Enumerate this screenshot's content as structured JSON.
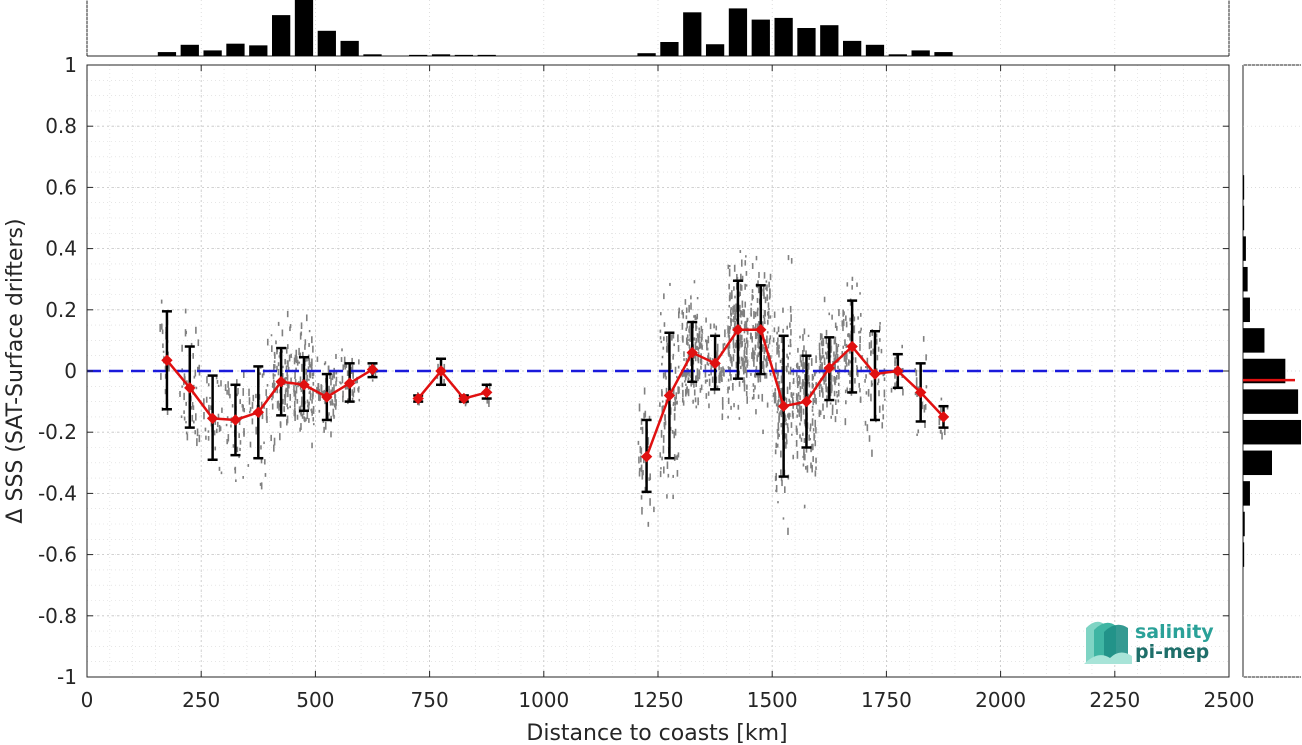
{
  "chart_data": {
    "type": "line",
    "title": "",
    "xlabel": "Distance to coasts [km]",
    "ylabel": "Δ SSS (SAT-Surface drifters)",
    "xlim": [
      0,
      2500
    ],
    "ylim": [
      -1,
      1
    ],
    "x_ticks": [
      0,
      250,
      500,
      750,
      1000,
      1250,
      1500,
      1750,
      2000,
      2250,
      2500
    ],
    "y_ticks": [
      1,
      0.8,
      0.6,
      0.4,
      0.2,
      0,
      -0.2,
      -0.4,
      -0.6,
      -0.8,
      -1
    ],
    "x_tick_labels": [
      "0",
      "250",
      "500",
      "750",
      "1000",
      "1250",
      "1500",
      "1750",
      "2000",
      "2250",
      "2500"
    ],
    "y_tick_labels": [
      "1",
      "0.8",
      "0.6",
      "0.4",
      "0.2",
      "0",
      "-0.2",
      "-0.4",
      "-0.6",
      "-0.8",
      "-1"
    ],
    "grid": true,
    "reference_line": {
      "y": 0,
      "color": "#1a1adb",
      "style": "dashed"
    },
    "mean_color": "#e01010",
    "errorbar_color": "#000000",
    "scatter_color": "#808080",
    "series": [
      {
        "segments": [
          [
            {
              "x": 175,
              "y": 0.035,
              "lo": -0.125,
              "hi": 0.195
            },
            {
              "x": 225,
              "y": -0.055,
              "lo": -0.185,
              "hi": 0.08
            },
            {
              "x": 275,
              "y": -0.155,
              "lo": -0.29,
              "hi": -0.015
            },
            {
              "x": 325,
              "y": -0.16,
              "lo": -0.275,
              "hi": -0.045
            },
            {
              "x": 375,
              "y": -0.135,
              "lo": -0.285,
              "hi": 0.015
            },
            {
              "x": 425,
              "y": -0.035,
              "lo": -0.145,
              "hi": 0.075
            },
            {
              "x": 475,
              "y": -0.045,
              "lo": -0.13,
              "hi": 0.045
            },
            {
              "x": 525,
              "y": -0.085,
              "lo": -0.16,
              "hi": -0.01
            },
            {
              "x": 575,
              "y": -0.04,
              "lo": -0.1,
              "hi": 0.025
            },
            {
              "x": 625,
              "y": 0.005,
              "lo": -0.02,
              "hi": 0.025
            }
          ],
          [
            {
              "x": 725,
              "y": -0.09,
              "lo": -0.1,
              "hi": -0.08
            },
            {
              "x": 775,
              "y": 0.0,
              "lo": -0.045,
              "hi": 0.04
            },
            {
              "x": 825,
              "y": -0.09,
              "lo": -0.1,
              "hi": -0.08
            },
            {
              "x": 875,
              "y": -0.07,
              "lo": -0.09,
              "hi": -0.045
            }
          ],
          [
            {
              "x": 1225,
              "y": -0.28,
              "lo": -0.395,
              "hi": -0.16
            },
            {
              "x": 1275,
              "y": -0.08,
              "lo": -0.285,
              "hi": 0.125
            },
            {
              "x": 1325,
              "y": 0.06,
              "lo": -0.035,
              "hi": 0.16
            },
            {
              "x": 1375,
              "y": 0.025,
              "lo": -0.06,
              "hi": 0.115
            },
            {
              "x": 1425,
              "y": 0.135,
              "lo": -0.025,
              "hi": 0.295
            },
            {
              "x": 1475,
              "y": 0.135,
              "lo": -0.01,
              "hi": 0.28
            },
            {
              "x": 1525,
              "y": -0.115,
              "lo": -0.345,
              "hi": 0.115
            },
            {
              "x": 1575,
              "y": -0.1,
              "lo": -0.25,
              "hi": 0.05
            },
            {
              "x": 1625,
              "y": 0.01,
              "lo": -0.095,
              "hi": 0.11
            },
            {
              "x": 1675,
              "y": 0.08,
              "lo": -0.07,
              "hi": 0.23
            },
            {
              "x": 1725,
              "y": -0.01,
              "lo": -0.16,
              "hi": 0.13
            },
            {
              "x": 1775,
              "y": 0.0,
              "lo": -0.055,
              "hi": 0.055
            },
            {
              "x": 1825,
              "y": -0.07,
              "lo": -0.165,
              "hi": 0.025
            },
            {
              "x": 1875,
              "y": -0.15,
              "lo": -0.185,
              "hi": -0.115
            }
          ]
        ]
      }
    ],
    "scatter_clusters": [
      {
        "x": 170,
        "spread": 10,
        "center": 0.03,
        "sd": 0.1,
        "n": 22
      },
      {
        "x": 225,
        "spread": 22,
        "center": -0.05,
        "sd": 0.1,
        "n": 45
      },
      {
        "x": 275,
        "spread": 22,
        "center": -0.15,
        "sd": 0.1,
        "n": 30
      },
      {
        "x": 325,
        "spread": 22,
        "center": -0.16,
        "sd": 0.09,
        "n": 40
      },
      {
        "x": 375,
        "spread": 22,
        "center": -0.13,
        "sd": 0.11,
        "n": 40
      },
      {
        "x": 425,
        "spread": 22,
        "center": -0.03,
        "sd": 0.09,
        "n": 90
      },
      {
        "x": 475,
        "spread": 22,
        "center": -0.04,
        "sd": 0.09,
        "n": 110
      },
      {
        "x": 525,
        "spread": 22,
        "center": -0.08,
        "sd": 0.06,
        "n": 70
      },
      {
        "x": 575,
        "spread": 22,
        "center": -0.04,
        "sd": 0.05,
        "n": 40
      },
      {
        "x": 625,
        "spread": 10,
        "center": 0.0,
        "sd": 0.02,
        "n": 10
      },
      {
        "x": 725,
        "spread": 8,
        "center": -0.09,
        "sd": 0.01,
        "n": 6
      },
      {
        "x": 775,
        "spread": 8,
        "center": 0.0,
        "sd": 0.03,
        "n": 5
      },
      {
        "x": 825,
        "spread": 8,
        "center": -0.09,
        "sd": 0.01,
        "n": 6
      },
      {
        "x": 875,
        "spread": 8,
        "center": -0.07,
        "sd": 0.02,
        "n": 6
      },
      {
        "x": 1225,
        "spread": 18,
        "center": -0.28,
        "sd": 0.1,
        "n": 35
      },
      {
        "x": 1275,
        "spread": 22,
        "center": -0.08,
        "sd": 0.15,
        "n": 90
      },
      {
        "x": 1325,
        "spread": 22,
        "center": 0.06,
        "sd": 0.08,
        "n": 140
      },
      {
        "x": 1375,
        "spread": 22,
        "center": 0.02,
        "sd": 0.07,
        "n": 60
      },
      {
        "x": 1425,
        "spread": 22,
        "center": 0.13,
        "sd": 0.12,
        "n": 180
      },
      {
        "x": 1475,
        "spread": 22,
        "center": 0.13,
        "sd": 0.11,
        "n": 150
      },
      {
        "x": 1525,
        "spread": 22,
        "center": -0.11,
        "sd": 0.16,
        "n": 150
      },
      {
        "x": 1575,
        "spread": 22,
        "center": -0.1,
        "sd": 0.11,
        "n": 140
      },
      {
        "x": 1625,
        "spread": 22,
        "center": 0.01,
        "sd": 0.08,
        "n": 140
      },
      {
        "x": 1675,
        "spread": 22,
        "center": 0.08,
        "sd": 0.11,
        "n": 80
      },
      {
        "x": 1725,
        "spread": 22,
        "center": -0.01,
        "sd": 0.1,
        "n": 50
      },
      {
        "x": 1775,
        "spread": 15,
        "center": 0.0,
        "sd": 0.04,
        "n": 15
      },
      {
        "x": 1825,
        "spread": 15,
        "center": -0.07,
        "sd": 0.07,
        "n": 22
      },
      {
        "x": 1875,
        "spread": 10,
        "center": -0.15,
        "sd": 0.03,
        "n": 10
      }
    ],
    "top_histogram": {
      "bin_width": 50,
      "bins": [
        {
          "x": 175,
          "v": 0.07
        },
        {
          "x": 225,
          "v": 0.2
        },
        {
          "x": 275,
          "v": 0.1
        },
        {
          "x": 325,
          "v": 0.22
        },
        {
          "x": 375,
          "v": 0.19
        },
        {
          "x": 425,
          "v": 0.73
        },
        {
          "x": 475,
          "v": 1.0
        },
        {
          "x": 525,
          "v": 0.45
        },
        {
          "x": 575,
          "v": 0.27
        },
        {
          "x": 625,
          "v": 0.03
        },
        {
          "x": 725,
          "v": 0.02
        },
        {
          "x": 775,
          "v": 0.03
        },
        {
          "x": 825,
          "v": 0.02
        },
        {
          "x": 875,
          "v": 0.02
        },
        {
          "x": 1225,
          "v": 0.05
        },
        {
          "x": 1275,
          "v": 0.25
        },
        {
          "x": 1325,
          "v": 0.78
        },
        {
          "x": 1375,
          "v": 0.21
        },
        {
          "x": 1425,
          "v": 0.85
        },
        {
          "x": 1475,
          "v": 0.65
        },
        {
          "x": 1525,
          "v": 0.68
        },
        {
          "x": 1575,
          "v": 0.5
        },
        {
          "x": 1625,
          "v": 0.55
        },
        {
          "x": 1675,
          "v": 0.27
        },
        {
          "x": 1725,
          "v": 0.2
        },
        {
          "x": 1775,
          "v": 0.03
        },
        {
          "x": 1825,
          "v": 0.1
        },
        {
          "x": 1875,
          "v": 0.07
        }
      ]
    },
    "right_histogram": {
      "bin_width": 0.1,
      "bins": [
        {
          "y": 0.6,
          "v": 0.02
        },
        {
          "y": 0.5,
          "v": 0.02
        },
        {
          "y": 0.4,
          "v": 0.05
        },
        {
          "y": 0.3,
          "v": 0.08
        },
        {
          "y": 0.2,
          "v": 0.12
        },
        {
          "y": 0.1,
          "v": 0.37
        },
        {
          "y": 0.0,
          "v": 0.73
        },
        {
          "y": -0.1,
          "v": 0.95
        },
        {
          "y": -0.2,
          "v": 1.0
        },
        {
          "y": -0.3,
          "v": 0.5
        },
        {
          "y": -0.4,
          "v": 0.12
        },
        {
          "y": -0.5,
          "v": 0.03
        },
        {
          "y": -0.6,
          "v": 0.02
        }
      ],
      "median": -0.03
    }
  },
  "logo": {
    "line1": "salinity",
    "line2": "pi-mep",
    "color1": "#2aa198",
    "color2": "#1f6f6a"
  }
}
